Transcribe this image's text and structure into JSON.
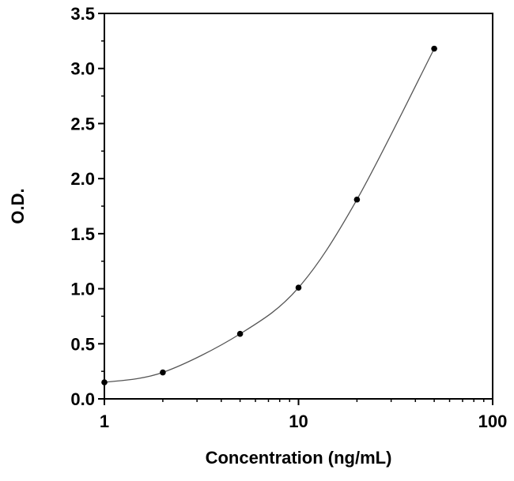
{
  "chart_data": {
    "type": "scatter",
    "title": "",
    "xlabel": "Concentration (ng/mL)",
    "ylabel": "O.D.",
    "xscale": "log",
    "xlim": [
      1,
      100
    ],
    "ylim": [
      0,
      3.5
    ],
    "grid": false,
    "legend": "none",
    "x_ticks": [
      {
        "value": 1,
        "label": "1"
      },
      {
        "value": 10,
        "label": "10"
      },
      {
        "value": 100,
        "label": "100"
      }
    ],
    "y_ticks": [
      {
        "value": 0,
        "label": "0.0"
      },
      {
        "value": 0.5,
        "label": "0.5"
      },
      {
        "value": 1.0,
        "label": "1.0"
      },
      {
        "value": 1.5,
        "label": "1.5"
      },
      {
        "value": 2.0,
        "label": "2.0"
      },
      {
        "value": 2.5,
        "label": "2.5"
      },
      {
        "value": 3.0,
        "label": "3.0"
      },
      {
        "value": 3.5,
        "label": "3.5"
      }
    ],
    "series": [
      {
        "points": [
          {
            "x": 1,
            "y": 0.15
          },
          {
            "x": 2,
            "y": 0.24
          },
          {
            "x": 5,
            "y": 0.59
          },
          {
            "x": 10,
            "y": 1.01
          },
          {
            "x": 20,
            "y": 1.81
          },
          {
            "x": 50,
            "y": 3.18
          }
        ],
        "fit": "smooth-curve",
        "color": "#000000"
      }
    ]
  }
}
